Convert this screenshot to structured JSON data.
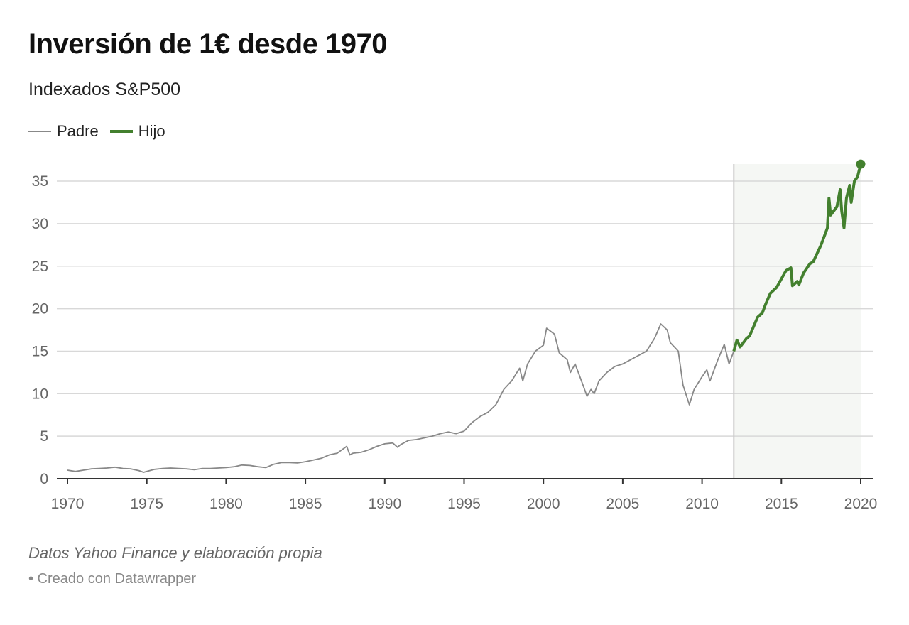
{
  "title": "Inversión de 1€ desde 1970",
  "subtitle": "Indexados S&P500",
  "notes": "Datos Yahoo Finance y elaboración propia",
  "credit": "• Creado con Datawrapper",
  "chart_data": {
    "type": "line",
    "title": "Inversión de 1€ desde 1970",
    "subtitle": "Indexados S&P500",
    "xlim": [
      1970,
      2020
    ],
    "ylim": [
      0,
      35
    ],
    "xticks": [
      1970,
      1975,
      1980,
      1985,
      1990,
      1995,
      2000,
      2005,
      2010,
      2015,
      2020
    ],
    "yticks": [
      0,
      5,
      10,
      15,
      20,
      25,
      30,
      35
    ],
    "grid": "horizontal",
    "legend": "top-left",
    "highlight_range": [
      2012,
      2020
    ],
    "colors": {
      "Padre": "#888888",
      "Hijo": "#43802e",
      "highlight": "#f5f7f4"
    },
    "series": [
      {
        "name": "Padre",
        "points": [
          [
            1970,
            1.0
          ],
          [
            1970.5,
            0.85
          ],
          [
            1971,
            1.0
          ],
          [
            1971.5,
            1.15
          ],
          [
            1972,
            1.2
          ],
          [
            1972.5,
            1.25
          ],
          [
            1973,
            1.35
          ],
          [
            1973.5,
            1.2
          ],
          [
            1974,
            1.15
          ],
          [
            1974.5,
            0.95
          ],
          [
            1974.8,
            0.75
          ],
          [
            1975,
            0.85
          ],
          [
            1975.5,
            1.1
          ],
          [
            1976,
            1.2
          ],
          [
            1976.5,
            1.25
          ],
          [
            1977,
            1.2
          ],
          [
            1977.5,
            1.15
          ],
          [
            1978,
            1.05
          ],
          [
            1978.5,
            1.2
          ],
          [
            1979,
            1.2
          ],
          [
            1979.5,
            1.25
          ],
          [
            1980,
            1.3
          ],
          [
            1980.5,
            1.4
          ],
          [
            1981,
            1.6
          ],
          [
            1981.5,
            1.55
          ],
          [
            1982,
            1.4
          ],
          [
            1982.5,
            1.3
          ],
          [
            1983,
            1.7
          ],
          [
            1983.5,
            1.9
          ],
          [
            1984,
            1.9
          ],
          [
            1984.5,
            1.85
          ],
          [
            1985,
            2.0
          ],
          [
            1985.5,
            2.2
          ],
          [
            1986,
            2.4
          ],
          [
            1986.5,
            2.8
          ],
          [
            1987,
            3.0
          ],
          [
            1987.6,
            3.8
          ],
          [
            1987.8,
            2.8
          ],
          [
            1988,
            3.0
          ],
          [
            1988.5,
            3.1
          ],
          [
            1989,
            3.4
          ],
          [
            1989.5,
            3.8
          ],
          [
            1990,
            4.1
          ],
          [
            1990.5,
            4.2
          ],
          [
            1990.8,
            3.7
          ],
          [
            1991,
            4.0
          ],
          [
            1991.5,
            4.5
          ],
          [
            1992,
            4.6
          ],
          [
            1992.5,
            4.8
          ],
          [
            1993,
            5.0
          ],
          [
            1993.5,
            5.3
          ],
          [
            1994,
            5.5
          ],
          [
            1994.5,
            5.3
          ],
          [
            1995,
            5.6
          ],
          [
            1995.5,
            6.6
          ],
          [
            1996,
            7.3
          ],
          [
            1996.5,
            7.8
          ],
          [
            1997,
            8.7
          ],
          [
            1997.5,
            10.5
          ],
          [
            1998,
            11.5
          ],
          [
            1998.5,
            13.0
          ],
          [
            1998.7,
            11.5
          ],
          [
            1999,
            13.5
          ],
          [
            1999.5,
            15.0
          ],
          [
            2000,
            15.7
          ],
          [
            2000.2,
            17.7
          ],
          [
            2000.7,
            17.0
          ],
          [
            2001,
            14.8
          ],
          [
            2001.5,
            14.0
          ],
          [
            2001.7,
            12.5
          ],
          [
            2002,
            13.5
          ],
          [
            2002.5,
            11.0
          ],
          [
            2002.75,
            9.7
          ],
          [
            2003,
            10.5
          ],
          [
            2003.2,
            10.0
          ],
          [
            2003.5,
            11.5
          ],
          [
            2004,
            12.5
          ],
          [
            2004.5,
            13.2
          ],
          [
            2005,
            13.5
          ],
          [
            2005.5,
            14.0
          ],
          [
            2006,
            14.5
          ],
          [
            2006.5,
            15.0
          ],
          [
            2007,
            16.5
          ],
          [
            2007.4,
            18.2
          ],
          [
            2007.8,
            17.5
          ],
          [
            2008,
            16.0
          ],
          [
            2008.5,
            15.0
          ],
          [
            2008.8,
            11.0
          ],
          [
            2009.2,
            8.7
          ],
          [
            2009.5,
            10.5
          ],
          [
            2010,
            12.0
          ],
          [
            2010.3,
            12.8
          ],
          [
            2010.5,
            11.5
          ],
          [
            2011,
            14.0
          ],
          [
            2011.4,
            15.8
          ],
          [
            2011.7,
            13.5
          ],
          [
            2012,
            15.0
          ]
        ]
      },
      {
        "name": "Hijo",
        "points": [
          [
            2012,
            15.0
          ],
          [
            2012.2,
            16.3
          ],
          [
            2012.4,
            15.5
          ],
          [
            2012.8,
            16.5
          ],
          [
            2013,
            16.8
          ],
          [
            2013.5,
            19.0
          ],
          [
            2013.8,
            19.5
          ],
          [
            2014,
            20.5
          ],
          [
            2014.3,
            21.8
          ],
          [
            2014.7,
            22.5
          ],
          [
            2015,
            23.5
          ],
          [
            2015.3,
            24.5
          ],
          [
            2015.6,
            24.8
          ],
          [
            2015.7,
            22.7
          ],
          [
            2016,
            23.2
          ],
          [
            2016.1,
            22.8
          ],
          [
            2016.4,
            24.2
          ],
          [
            2016.8,
            25.3
          ],
          [
            2017,
            25.5
          ],
          [
            2017.5,
            27.5
          ],
          [
            2017.9,
            29.5
          ],
          [
            2018,
            33.0
          ],
          [
            2018.1,
            31.0
          ],
          [
            2018.5,
            32.0
          ],
          [
            2018.7,
            34.0
          ],
          [
            2018.8,
            31.5
          ],
          [
            2018.95,
            29.5
          ],
          [
            2019.1,
            33.0
          ],
          [
            2019.3,
            34.5
          ],
          [
            2019.4,
            32.5
          ],
          [
            2019.6,
            35.0
          ],
          [
            2019.8,
            35.5
          ],
          [
            2020,
            37.0
          ]
        ]
      }
    ]
  }
}
